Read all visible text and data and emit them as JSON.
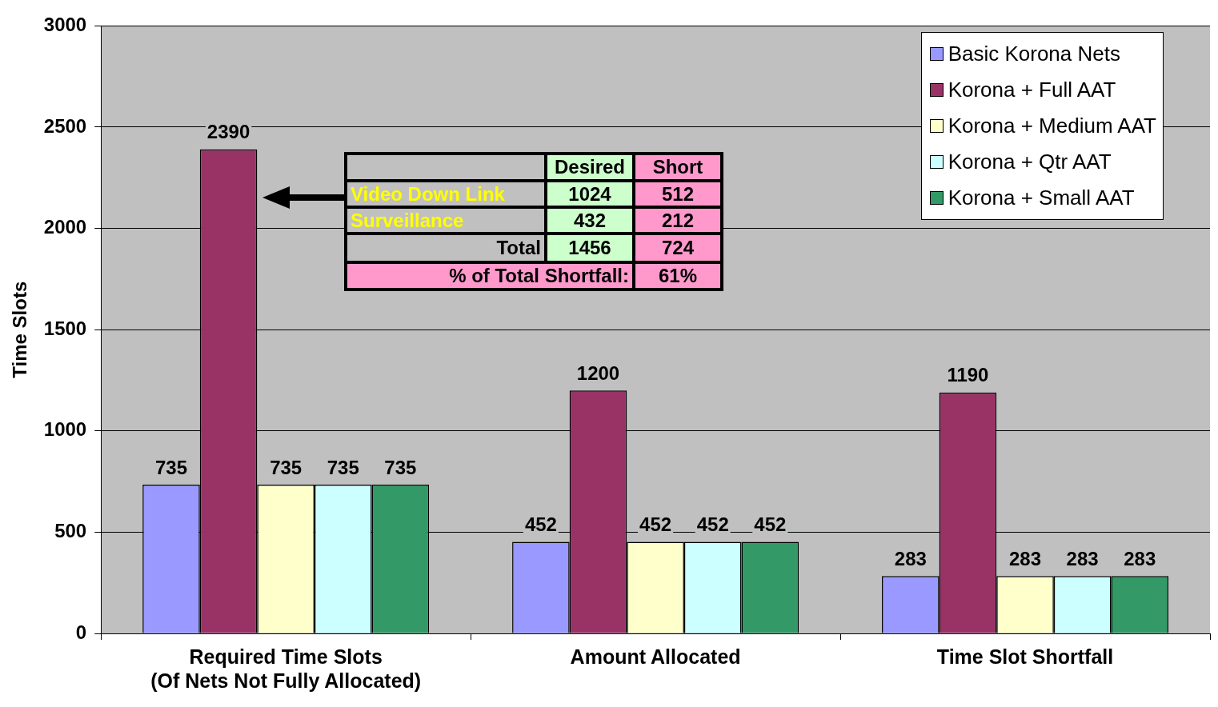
{
  "chart_data": {
    "type": "bar",
    "ylabel": "Time Slots",
    "categories": [
      "Required Time Slots\n(Of Nets Not Fully Allocated)",
      "Amount Allocated",
      "Time Slot Shortfall"
    ],
    "series": [
      {
        "name": "Basic Korona Nets",
        "color": "#9999ff",
        "values": [
          735,
          452,
          283
        ]
      },
      {
        "name": "Korona + Full AAT",
        "color": "#993366",
        "values": [
          2390,
          1200,
          1190
        ]
      },
      {
        "name": "Korona + Medium AAT",
        "color": "#ffffcc",
        "values": [
          735,
          452,
          283
        ]
      },
      {
        "name": "Korona + Qtr AAT",
        "color": "#ccffff",
        "values": [
          735,
          452,
          283
        ]
      },
      {
        "name": "Korona + Small AAT",
        "color": "#339966",
        "values": [
          735,
          452,
          283
        ]
      }
    ],
    "ylim": [
      0,
      3000
    ],
    "yticks": [
      0,
      500,
      1000,
      1500,
      2000,
      2500,
      3000
    ],
    "grid": "y",
    "legend": "top right",
    "data_labels": true,
    "annotations": [
      "Desired",
      "Short",
      "Video Down Link",
      "1024",
      "512",
      "Surveillance",
      "432",
      "212",
      "Total",
      "1456",
      "724",
      "% of Total Shortfall:",
      "61%"
    ]
  }
}
